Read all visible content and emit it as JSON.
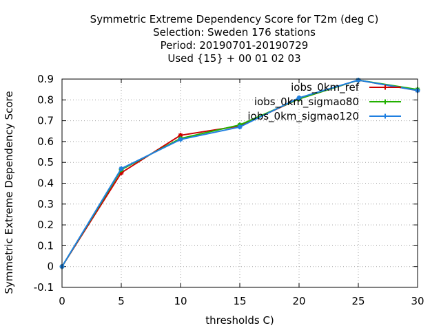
{
  "chart_data": {
    "type": "line",
    "title_lines": [
      "Symmetric Extreme Dependency Score  for T2m (deg C)",
      "Selection: Sweden    176 stations",
      "Period: 20190701-20190729",
      "Used {15} + 00 01 02 03"
    ],
    "xlabel": "thresholds C)",
    "ylabel": "Symmetric Extreme Dependency Score",
    "xlim": [
      0,
      30
    ],
    "ylim": [
      -0.1,
      0.9
    ],
    "xticks": [
      "0",
      "5",
      "10",
      "15",
      "20",
      "25",
      "30"
    ],
    "yticks": [
      "-0.1",
      "0",
      "0.1",
      "0.2",
      "0.3",
      "0.4",
      "0.5",
      "0.6",
      "0.7",
      "0.8",
      "0.9"
    ],
    "grid": true,
    "legend_position": "top-right",
    "x": [
      0,
      5,
      10,
      15,
      20,
      25,
      30
    ],
    "series": [
      {
        "name": "iobs_0km_ref",
        "color": "#cc0000",
        "values": [
          0.0,
          0.45,
          0.63,
          0.675,
          0.805,
          0.895,
          0.845
        ]
      },
      {
        "name": "iobs_0km_sigmao80",
        "color": "#22b000",
        "values": [
          0.0,
          0.465,
          0.615,
          0.68,
          0.805,
          0.895,
          0.85
        ]
      },
      {
        "name": "iobs_0km_sigmao120",
        "color": "#1f7fe0",
        "values": [
          0.0,
          0.47,
          0.61,
          0.67,
          0.81,
          0.895,
          0.845
        ]
      }
    ]
  }
}
